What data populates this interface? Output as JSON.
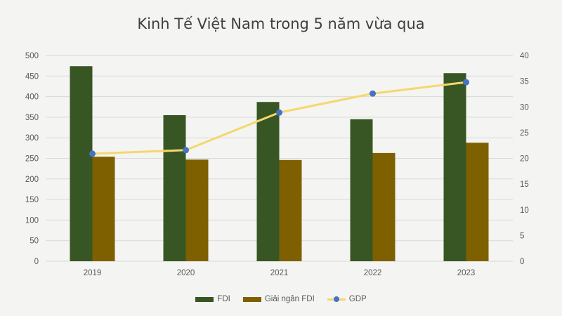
{
  "chart_data": {
    "type": "bar+line",
    "title": "Kinh Tế Việt Nam trong 5 năm vừa qua",
    "categories": [
      "2019",
      "2020",
      "2021",
      "2022",
      "2023"
    ],
    "series": [
      {
        "name": "FDI",
        "type": "bar",
        "axis": "left",
        "color": "#375623",
        "values": [
          474,
          355,
          387,
          345,
          457
        ]
      },
      {
        "name": "Giải ngân FDI",
        "type": "bar",
        "axis": "left",
        "color": "#7f6000",
        "values": [
          254,
          247,
          246,
          263,
          288
        ]
      },
      {
        "name": "GDP",
        "type": "line",
        "axis": "right",
        "color": "#f5d76e",
        "marker_color": "#4472c4",
        "values": [
          20.9,
          21.6,
          28.9,
          32.6,
          34.8
        ]
      }
    ],
    "y_left": {
      "min": 0,
      "max": 500,
      "step": 50,
      "ticks": [
        "0",
        "50",
        "100",
        "150",
        "200",
        "250",
        "300",
        "350",
        "400",
        "450",
        "500"
      ]
    },
    "y_right": {
      "min": 0,
      "max": 40,
      "step": 5,
      "ticks": [
        "0",
        "5",
        "10",
        "15",
        "20",
        "25",
        "30",
        "35",
        "40"
      ]
    },
    "grid": true,
    "legend_position": "bottom"
  }
}
